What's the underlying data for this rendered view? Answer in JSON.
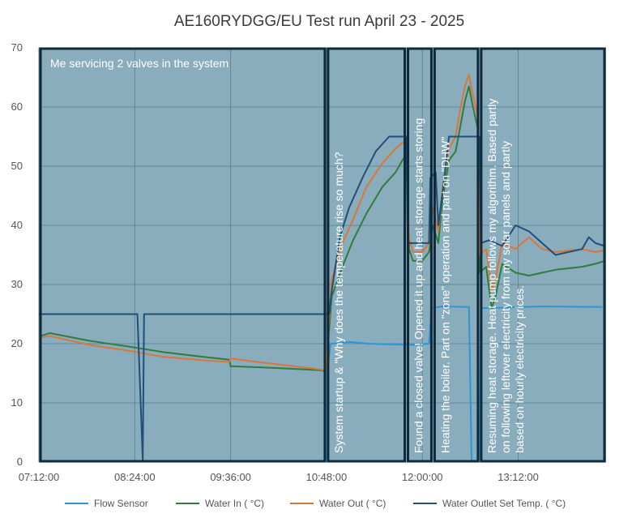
{
  "chart_data": {
    "type": "line",
    "title": "AE160RYDGG/EU Test run April 23 - 2025",
    "xlabel": "",
    "ylabel": "",
    "ylim": [
      0,
      70
    ],
    "xlim": [
      "07:12:00",
      "14:18:00"
    ],
    "x_tick_labels": [
      "07:12:00",
      "08:24:00",
      "09:36:00",
      "10:48:00",
      "12:00:00",
      "13:12:00"
    ],
    "y_tick_labels": [
      "0",
      "10",
      "20",
      "30",
      "40",
      "50",
      "60",
      "70"
    ],
    "grid": true,
    "legend_position": "bottom",
    "plot_background": "#8aadbe",
    "series": [
      {
        "name": "Flow Sensor",
        "color": "#2e95d3",
        "points": [
          [
            "07:12",
            0.2
          ],
          [
            "10:48",
            0.2
          ],
          [
            "10:49",
            16
          ],
          [
            "10:51",
            20
          ],
          [
            "11:05",
            20.3
          ],
          [
            "11:20",
            20
          ],
          [
            "11:35",
            19.9
          ],
          [
            "11:55",
            19.8
          ],
          [
            "12:05",
            20
          ],
          [
            "12:07",
            26
          ],
          [
            "12:15",
            26.3
          ],
          [
            "12:35",
            26.2
          ],
          [
            "12:37",
            0.2
          ],
          [
            "12:43",
            0.2
          ],
          [
            "12:44",
            26
          ],
          [
            "13:00",
            26.1
          ],
          [
            "13:30",
            26.3
          ],
          [
            "14:15",
            26.2
          ]
        ]
      },
      {
        "name": "Water In ( °C)",
        "color": "#2e7d3c",
        "points": [
          [
            "07:12",
            21.2
          ],
          [
            "07:20",
            21.8
          ],
          [
            "07:50",
            20.5
          ],
          [
            "08:20",
            19.5
          ],
          [
            "08:45",
            18.6
          ],
          [
            "09:15",
            17.8
          ],
          [
            "09:35",
            17.3
          ],
          [
            "09:36",
            16.2
          ],
          [
            "10:00",
            16
          ],
          [
            "10:20",
            15.8
          ],
          [
            "10:45",
            15.5
          ],
          [
            "10:47",
            15.2
          ],
          [
            "10:48",
            17
          ],
          [
            "10:52",
            28
          ],
          [
            "11:00",
            33
          ],
          [
            "11:08",
            37.5
          ],
          [
            "11:18",
            42
          ],
          [
            "11:30",
            46.5
          ],
          [
            "11:40",
            49
          ],
          [
            "11:45",
            51
          ],
          [
            "11:48",
            52
          ],
          [
            "11:50",
            36
          ],
          [
            "11:53",
            34
          ],
          [
            "12:00",
            34
          ],
          [
            "12:05",
            35.5
          ],
          [
            "12:08",
            40
          ],
          [
            "12:12",
            37
          ],
          [
            "12:15",
            44
          ],
          [
            "12:20",
            51
          ],
          [
            "12:25",
            52.5
          ],
          [
            "12:28",
            56
          ],
          [
            "12:32",
            61
          ],
          [
            "12:35",
            63.5
          ],
          [
            "12:38",
            60
          ],
          [
            "12:42",
            56
          ],
          [
            "12:43",
            32
          ],
          [
            "12:48",
            33
          ],
          [
            "12:52",
            26
          ],
          [
            "12:55",
            28
          ],
          [
            "13:00",
            33.5
          ],
          [
            "13:10",
            32
          ],
          [
            "13:20",
            31.5
          ],
          [
            "13:40",
            32.5
          ],
          [
            "14:00",
            33
          ],
          [
            "14:10",
            33.5
          ],
          [
            "14:17",
            34
          ]
        ]
      },
      {
        "name": "Water Out ( °C)",
        "color": "#d8773a",
        "points": [
          [
            "07:12",
            21
          ],
          [
            "07:20",
            21.3
          ],
          [
            "07:50",
            19.8
          ],
          [
            "08:20",
            18.8
          ],
          [
            "08:45",
            17.8
          ],
          [
            "09:15",
            17.2
          ],
          [
            "09:35",
            16.9
          ],
          [
            "09:36",
            17.5
          ],
          [
            "10:00",
            16.8
          ],
          [
            "10:20",
            16.3
          ],
          [
            "10:45",
            15.6
          ],
          [
            "10:47",
            15.3
          ],
          [
            "10:48",
            17.5
          ],
          [
            "10:52",
            31
          ],
          [
            "11:00",
            37
          ],
          [
            "11:08",
            41
          ],
          [
            "11:18",
            46.5
          ],
          [
            "11:30",
            50.5
          ],
          [
            "11:40",
            53
          ],
          [
            "11:48",
            54.5
          ],
          [
            "11:50",
            38
          ],
          [
            "11:53",
            35.5
          ],
          [
            "12:00",
            35.5
          ],
          [
            "12:05",
            37
          ],
          [
            "12:08",
            43
          ],
          [
            "12:12",
            39
          ],
          [
            "12:15",
            46
          ],
          [
            "12:20",
            53
          ],
          [
            "12:25",
            55
          ],
          [
            "12:28",
            59
          ],
          [
            "12:32",
            63.5
          ],
          [
            "12:35",
            65.5
          ],
          [
            "12:38",
            62
          ],
          [
            "12:42",
            58
          ],
          [
            "12:43",
            35
          ],
          [
            "12:48",
            36
          ],
          [
            "12:52",
            29
          ],
          [
            "12:55",
            31
          ],
          [
            "13:00",
            37
          ],
          [
            "13:10",
            36
          ],
          [
            "13:20",
            38
          ],
          [
            "13:30",
            36
          ],
          [
            "13:40",
            35.5
          ],
          [
            "14:00",
            36
          ],
          [
            "14:10",
            35.5
          ],
          [
            "14:17",
            35.8
          ]
        ]
      },
      {
        "name": "Water Outlet Set Temp. ( °C)",
        "color": "#1f4f7a",
        "points": [
          [
            "07:12",
            25
          ],
          [
            "08:26",
            25
          ],
          [
            "08:30",
            0.2
          ],
          [
            "08:31",
            25
          ],
          [
            "10:50",
            25
          ],
          [
            "10:52",
            29
          ],
          [
            "10:58",
            38
          ],
          [
            "11:05",
            43
          ],
          [
            "11:15",
            48
          ],
          [
            "11:25",
            52.5
          ],
          [
            "11:35",
            55
          ],
          [
            "11:48",
            55
          ],
          [
            "11:49",
            37
          ],
          [
            "12:05",
            37
          ],
          [
            "12:06",
            48
          ],
          [
            "12:10",
            49
          ],
          [
            "12:12",
            40
          ],
          [
            "12:16",
            47
          ],
          [
            "12:20",
            55
          ],
          [
            "12:43",
            55
          ],
          [
            "12:44",
            37
          ],
          [
            "12:50",
            37.5
          ],
          [
            "13:00",
            36.5
          ],
          [
            "13:10",
            40
          ],
          [
            "13:20",
            39
          ],
          [
            "13:30",
            37
          ],
          [
            "13:40",
            35
          ],
          [
            "14:00",
            36
          ],
          [
            "14:05",
            38
          ],
          [
            "14:10",
            37
          ],
          [
            "14:17",
            36.5
          ]
        ]
      }
    ],
    "annotations": [
      {
        "text": "Me servicing  2 valves in the system",
        "x_start": "07:12",
        "x_end": "10:48",
        "orientation": "horizontal"
      },
      {
        "text": "System startup & \"Why does the temperature rise so much?",
        "x_start": "10:48",
        "x_end": "11:48",
        "orientation": "vertical"
      },
      {
        "text": "Found a closed valve! Opened it up and heat storage starts storing",
        "x_start": "11:48",
        "x_end": "12:08",
        "orientation": "vertical"
      },
      {
        "text": "Heating the boiler. Part on \"zone\" operation and part on \"DHW\"",
        "x_start": "12:08",
        "x_end": "12:43",
        "orientation": "vertical"
      },
      {
        "text": "Resuming heat storage. Heat pump follows my algorithm. Based partly on following leftover electricity from my solar panels and partly based on hourly electricity prices.",
        "x_start": "12:43",
        "x_end": "14:18",
        "orientation": "vertical"
      }
    ]
  }
}
